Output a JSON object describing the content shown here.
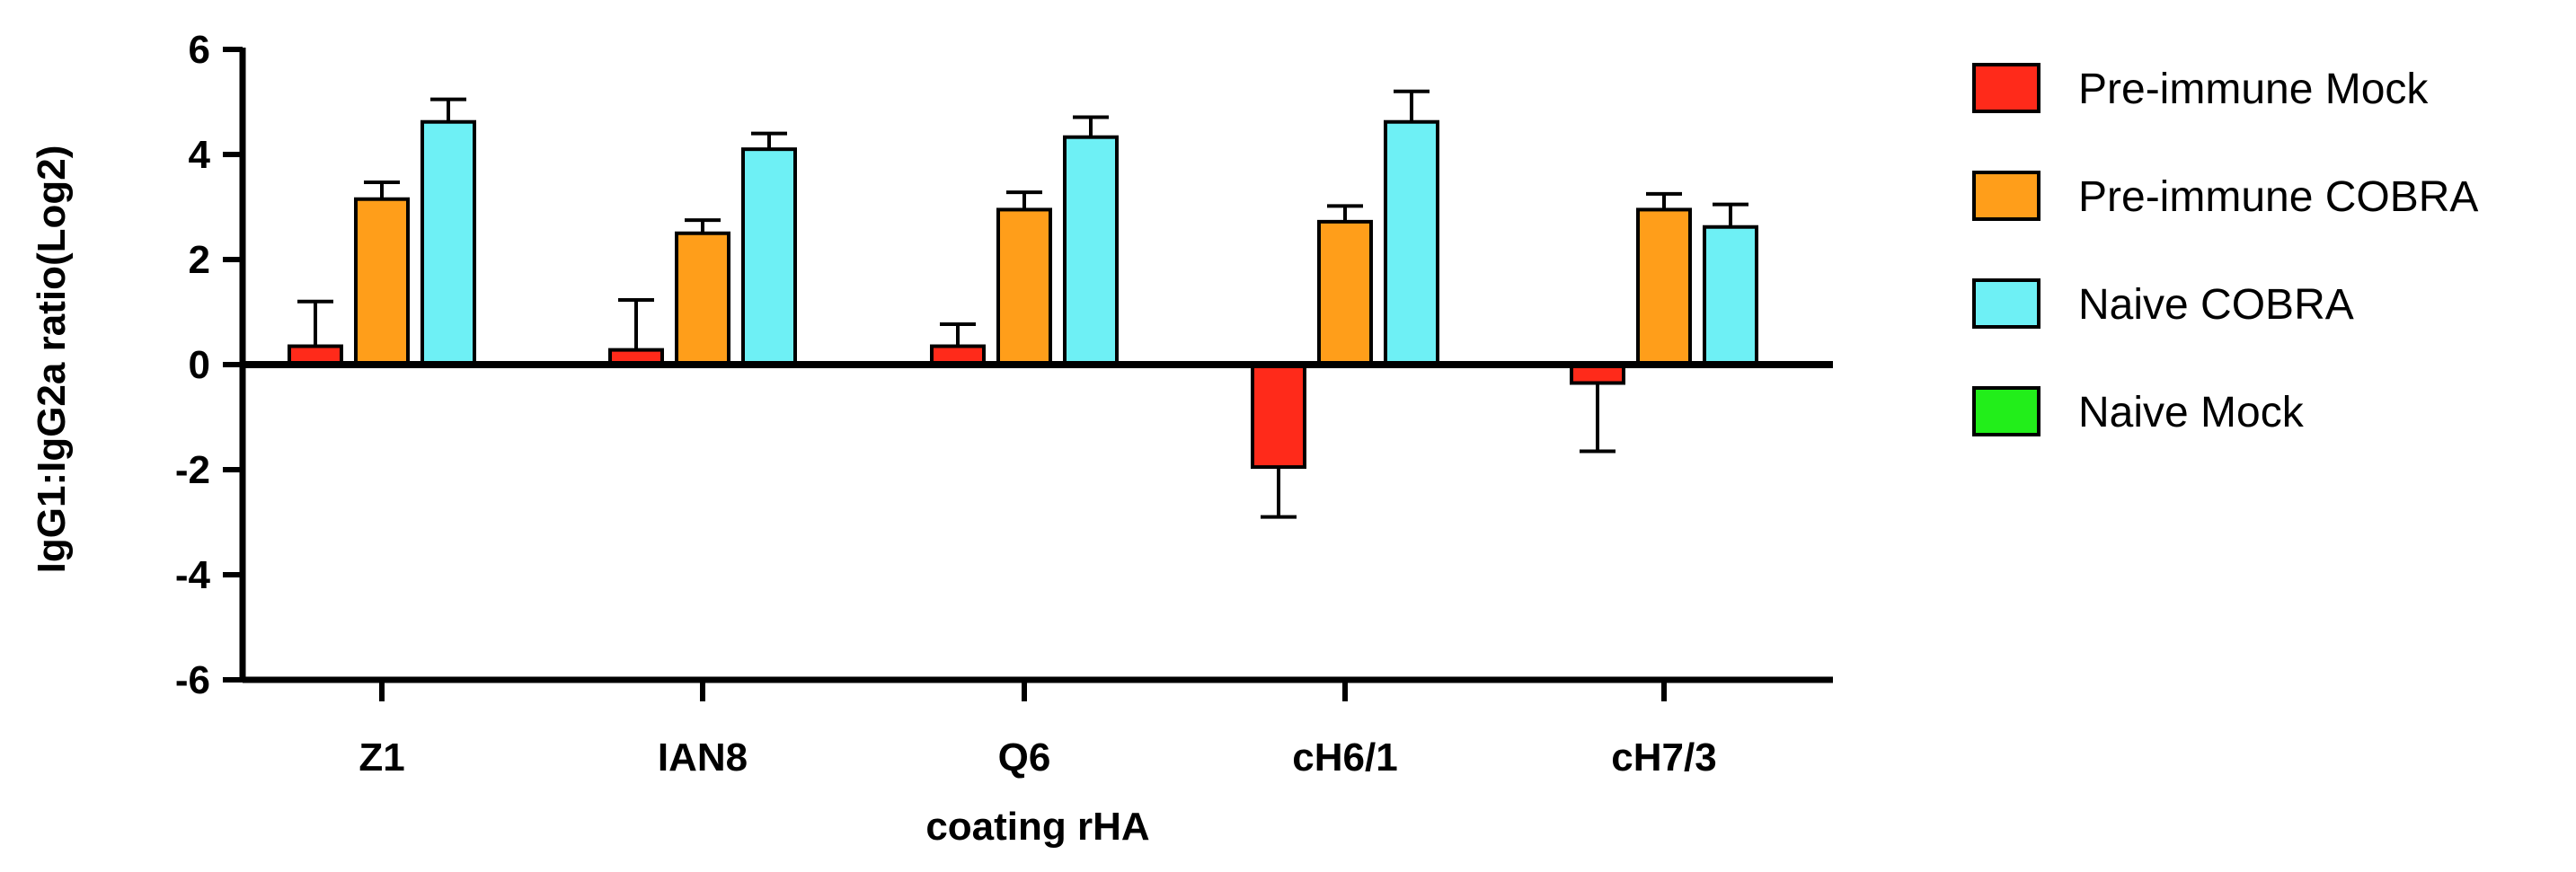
{
  "chart_data": {
    "type": "bar",
    "xlabel": "coating rHA",
    "ylabel": "IgG1:IgG2a ratio(Log2)",
    "ylim": [
      -6,
      6
    ],
    "yticks": [
      6,
      4,
      2,
      0,
      -2,
      -4,
      -6
    ],
    "ytick_labels": [
      "6",
      "4",
      "2",
      "0",
      "-2",
      "-4",
      "-6"
    ],
    "categories": [
      "Z1",
      "IAN8",
      "Q6",
      "cH6/1",
      "cH7/3"
    ],
    "legend_position": "right",
    "grid": false,
    "series": [
      {
        "name": "Pre-immune Mock",
        "color": "#ff2a1a",
        "values": [
          0.35,
          0.28,
          0.35,
          -1.95,
          -0.35
        ],
        "errors": [
          0.85,
          0.95,
          0.42,
          0.95,
          1.3
        ]
      },
      {
        "name": "Pre-immune COBRA",
        "color": "#ff9e1a",
        "values": [
          3.15,
          2.5,
          2.95,
          2.72,
          2.95
        ],
        "errors": [
          0.32,
          0.25,
          0.33,
          0.3,
          0.3
        ]
      },
      {
        "name": "Naive COBRA",
        "color": "#6ef0f5",
        "values": [
          4.62,
          4.1,
          4.33,
          4.62,
          2.62
        ],
        "errors": [
          0.43,
          0.3,
          0.38,
          0.58,
          0.43
        ]
      },
      {
        "name": "Naive Mock",
        "color": "#22ee1a",
        "values": [
          0,
          0,
          0,
          0,
          0
        ],
        "errors": [
          0,
          0,
          0,
          0,
          0
        ]
      }
    ]
  }
}
